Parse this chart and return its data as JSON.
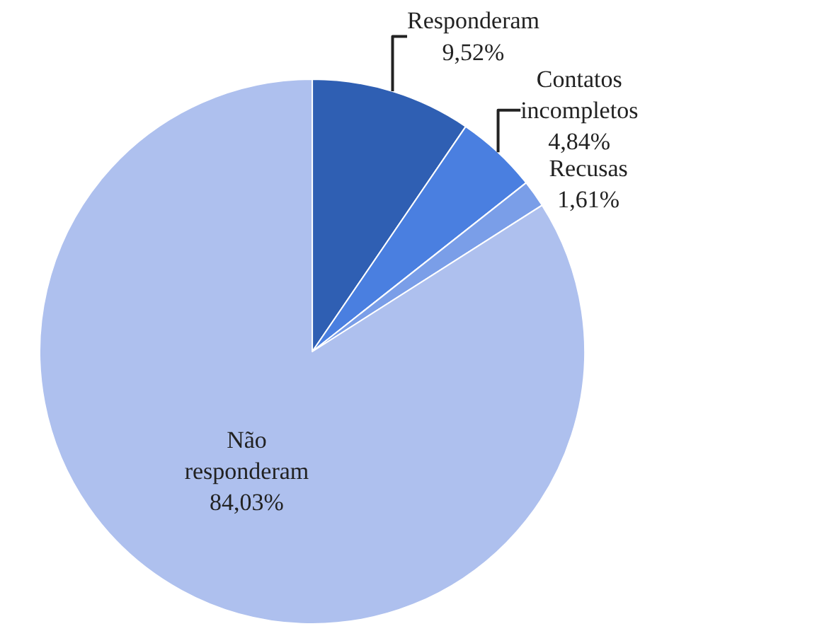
{
  "chart_data": {
    "type": "pie",
    "categories": [
      "Responderam",
      "Contatos incompletos",
      "Recusas",
      "Não responderam"
    ],
    "values": [
      9.52,
      4.84,
      1.61,
      84.03
    ],
    "value_labels": [
      "9,52%",
      "4,84%",
      "1,61%",
      "84,03%"
    ],
    "colors": [
      "#2f5fb3",
      "#4a7fe0",
      "#7a9ee8",
      "#aec0ee"
    ],
    "legend": false
  }
}
